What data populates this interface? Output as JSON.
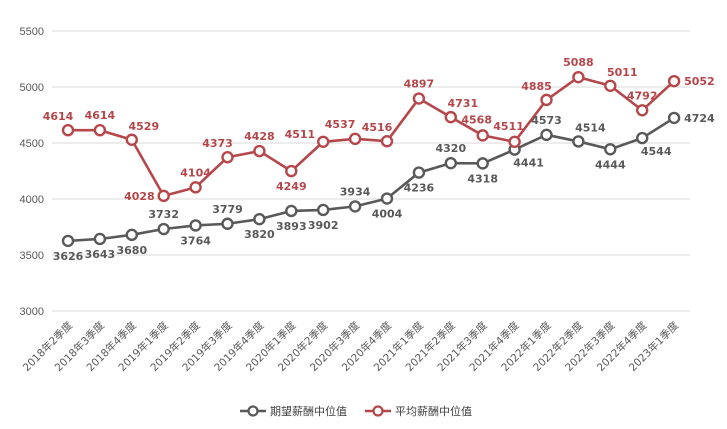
{
  "chart_data": {
    "type": "line",
    "title": "",
    "xlabel": "",
    "ylabel": "",
    "ylim": [
      3000,
      5500
    ],
    "yticks": [
      3000,
      3500,
      4000,
      4500,
      5000,
      5500
    ],
    "grid": true,
    "legend_position": "bottom",
    "categories": [
      "2018年2季度",
      "2018年3季度",
      "2018年4季度",
      "2019年1季度",
      "2019年2季度",
      "2019年3季度",
      "2019年4季度",
      "2020年1季度",
      "2020年2季度",
      "2020年3季度",
      "2020年4季度",
      "2021年1季度",
      "2021年2季度",
      "2021年3季度",
      "2021年4季度",
      "2022年1季度",
      "2022年2季度",
      "2022年3季度",
      "2022年4季度",
      "2023年1季度"
    ],
    "series": [
      {
        "name": "期望薪酬中位值",
        "color": "#595959",
        "values": [
          3626,
          3643,
          3680,
          3732,
          3764,
          3779,
          3820,
          3893,
          3902,
          3934,
          4004,
          4236,
          4320,
          4318,
          4441,
          4573,
          4514,
          4444,
          4544,
          4724
        ]
      },
      {
        "name": "平均薪酬中位值",
        "color": "#b5474b",
        "values": [
          4614,
          4614,
          4529,
          4028,
          4104,
          4373,
          4428,
          4249,
          4511,
          4537,
          4516,
          4897,
          4731,
          4568,
          4511,
          4885,
          5088,
          5011,
          4792,
          5052
        ]
      }
    ]
  }
}
